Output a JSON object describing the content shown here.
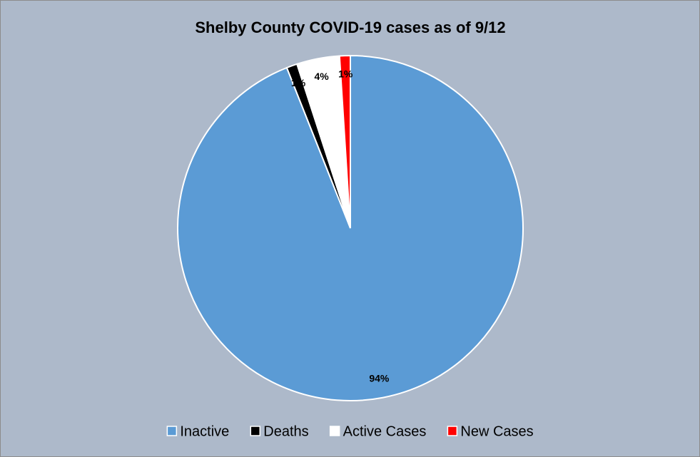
{
  "chart_data": {
    "type": "pie",
    "title": "Shelby County COVID-19 cases as of 9/12",
    "categories": [
      "Inactive",
      "Deaths",
      "Active Cases",
      "New Cases"
    ],
    "values": [
      94,
      1,
      4,
      1
    ],
    "value_labels": [
      "94%",
      "1%",
      "4%",
      "1%"
    ],
    "colors": [
      "#5b9bd5",
      "#000000",
      "#ffffff",
      "#ff0000"
    ],
    "legend": "bottom"
  }
}
